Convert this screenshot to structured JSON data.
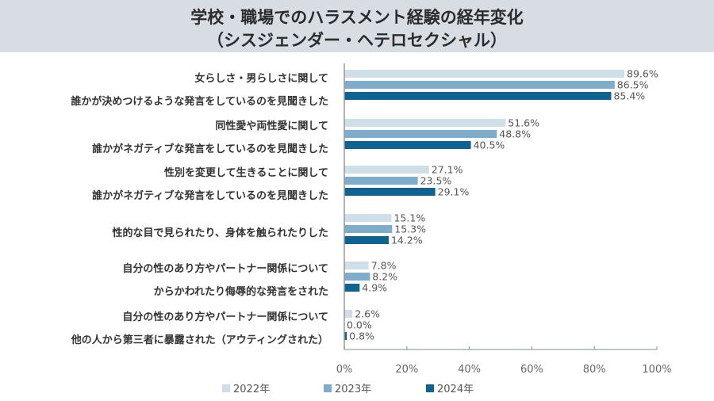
{
  "title_line1": "学校・職場でのハラスメント経験の経年変化",
  "title_line2": "（シスジェンダー・ヘテロセクシャル）",
  "chart_data": {
    "type": "bar",
    "orientation": "horizontal",
    "title": "学校・職場でのハラスメント経験の経年変化（シスジェンダー・ヘテロセクシャル）",
    "xlabel": "",
    "ylabel": "",
    "xlim": [
      0,
      100
    ],
    "x_ticks": [
      "0%",
      "20%",
      "40%",
      "60%",
      "80%",
      "100%"
    ],
    "x_tick_values": [
      0,
      20,
      40,
      60,
      80,
      100
    ],
    "grid": false,
    "legend_position": "bottom",
    "categories": [
      [
        "女らしさ・男らしさに関して",
        "誰かが決めつけるような発言をしているのを見聞きした"
      ],
      [
        "同性愛や両性愛に関して",
        "誰かがネガティブな発言をしているのを見聞きした"
      ],
      [
        "性別を変更して生きることに関して",
        "誰かがネガティブな発言をしているのを見聞きした"
      ],
      [
        "性的な目で見られたり、身体を触られたりした"
      ],
      [
        "自分の性のあり方やパートナー関係について",
        "からかわれたり侮辱的な発言をされた"
      ],
      [
        "自分の性のあり方やパートナー関係について",
        "他の人から第三者に暴露された（アウティングされた）"
      ]
    ],
    "series": [
      {
        "name": "2022年",
        "color": "#cfdfe8",
        "values": [
          89.6,
          51.6,
          27.1,
          15.1,
          7.8,
          2.6
        ],
        "labels": [
          "89.6%",
          "51.6%",
          "27.1%",
          "15.1%",
          "7.8%",
          "2.6%"
        ]
      },
      {
        "name": "2023年",
        "color": "#7eaccb",
        "values": [
          86.5,
          48.8,
          23.5,
          15.3,
          8.2,
          0.0
        ],
        "labels": [
          "86.5%",
          "48.8%",
          "23.5%",
          "15.3%",
          "8.2%",
          "0.0%"
        ]
      },
      {
        "name": "2024年",
        "color": "#0e6393",
        "values": [
          85.4,
          40.5,
          29.1,
          14.2,
          4.9,
          0.8
        ],
        "labels": [
          "85.4%",
          "40.5%",
          "29.1%",
          "14.2%",
          "4.9%",
          "0.8%"
        ]
      }
    ]
  }
}
